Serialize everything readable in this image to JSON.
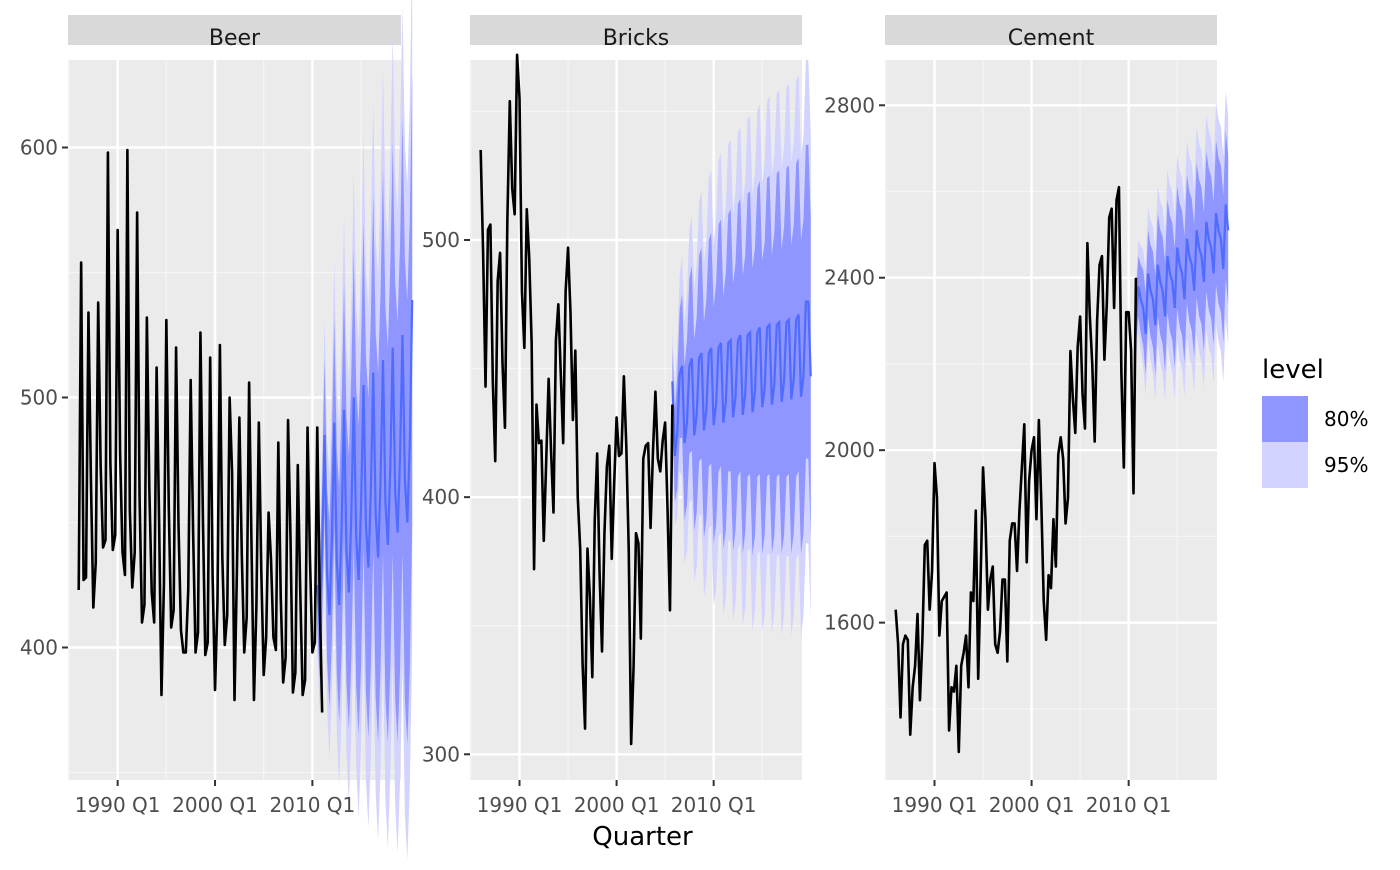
{
  "chart_data": {
    "type": "line",
    "title": "",
    "xlabel": "Quarter",
    "ylabel": "",
    "grid": true,
    "legend": {
      "title": "level",
      "placement": "right",
      "entries": [
        {
          "label": "80%",
          "color": "#8f96ff"
        },
        {
          "label": "95%",
          "color": "#d2d3ff"
        }
      ]
    },
    "colors": {
      "line": "#000000",
      "forecast_mean": "#4f6cff",
      "band80": "#8f96ff",
      "band95": "#d2d3ff",
      "panel_bg": "#ebebeb",
      "strip_bg": "#d9d9d9",
      "grid_major": "#ffffff"
    },
    "x_ticks": [
      {
        "value": 1990,
        "label": "1990 Q1"
      },
      {
        "value": 2000,
        "label": "2000 Q1"
      },
      {
        "value": 2010,
        "label": "2010 Q1"
      }
    ],
    "xlim": [
      1984.9,
      2019.1
    ],
    "panels": [
      {
        "strip": "Beer",
        "ylim": [
          347,
          635
        ],
        "y_ticks": [
          400,
          500,
          600
        ],
        "y_minor": [
          350,
          450,
          550
        ],
        "history": {
          "start": 1986.0,
          "step": 0.25,
          "values": [
            423,
            554,
            427,
            428,
            534,
            468,
            416,
            434,
            538,
            473,
            440,
            443,
            598,
            474,
            439,
            445,
            567,
            478,
            438,
            429,
            599,
            455,
            424,
            438,
            574,
            460,
            410,
            417,
            532,
            464,
            422,
            410,
            512,
            452,
            381,
            425,
            531,
            456,
            408,
            415,
            520,
            449,
            407,
            398,
            398,
            423,
            507,
            446,
            398,
            406,
            526,
            453,
            397,
            402,
            516,
            429,
            383,
            418,
            521,
            436,
            401,
            413,
            500,
            470,
            379,
            431,
            492,
            437,
            398,
            412,
            506,
            440,
            379,
            417,
            490,
            431,
            389,
            404,
            454,
            435,
            404,
            399,
            482,
            420,
            386,
            396,
            491,
            444,
            382,
            390,
            473,
            423,
            381,
            387,
            488,
            436,
            398,
            402,
            488,
            421,
            374
          ]
        },
        "forecast": {
          "start": 2010.5,
          "step": 0.25,
          "mean": [
            425,
            409,
            438,
            485,
            430,
            413,
            443,
            490,
            435,
            417,
            448,
            495,
            439,
            422,
            453,
            500,
            444,
            427,
            457,
            505,
            449,
            432,
            462,
            510,
            453,
            436,
            467,
            515,
            458,
            441,
            472,
            520,
            463,
            446,
            476,
            525,
            467,
            450,
            481,
            539
          ],
          "half80": [
            16,
            22,
            27,
            31,
            34,
            37,
            40,
            42,
            45,
            47,
            49,
            51,
            53,
            55,
            57,
            59,
            60,
            62,
            64,
            65,
            67,
            68,
            70,
            71,
            73,
            74,
            75,
            77,
            78,
            79,
            81,
            82,
            83,
            84,
            85,
            87,
            88,
            89,
            90,
            91
          ],
          "half95": [
            25,
            34,
            41,
            47,
            53,
            57,
            61,
            65,
            69,
            72,
            75,
            78,
            81,
            84,
            87,
            90,
            92,
            95,
            97,
            100,
            102,
            104,
            106,
            108,
            111,
            113,
            115,
            117,
            119,
            121,
            123,
            125,
            126,
            128,
            130,
            132,
            134,
            135,
            137,
            139
          ]
        }
      },
      {
        "strip": "Bricks",
        "ylim": [
          290,
          570
        ],
        "y_ticks": [
          300,
          400,
          500
        ],
        "y_minor": [
          350,
          450,
          550
        ],
        "history": {
          "start": 1986.0,
          "step": 0.25,
          "values": [
            535,
            495,
            443,
            504,
            506,
            445,
            414,
            484,
            495,
            452,
            427,
            508,
            554,
            520,
            510,
            572,
            555,
            480,
            458,
            512,
            493,
            460,
            372,
            436,
            421,
            422,
            383,
            414,
            446,
            418,
            394,
            461,
            475,
            448,
            421,
            480,
            497,
            472,
            430,
            457,
            400,
            380,
            335,
            310,
            380,
            361,
            330,
            391,
            417,
            370,
            340,
            386,
            412,
            420,
            376,
            405,
            431,
            416,
            417,
            447,
            420,
            380,
            304,
            334,
            386,
            382,
            345,
            415,
            420,
            421,
            388,
            418,
            441,
            415,
            410,
            422,
            429,
            395,
            356,
            436
          ]
        },
        "forecast": {
          "start": 2005.75,
          "step": 0.25,
          "mean": [
            445,
            416,
            425,
            448,
            451,
            421,
            429,
            451,
            454,
            424,
            432,
            454,
            456,
            426,
            434,
            456,
            458,
            428,
            436,
            458,
            460,
            429,
            437,
            460,
            461,
            431,
            439,
            461,
            463,
            432,
            440,
            463,
            464,
            433,
            441,
            464,
            466,
            435,
            442,
            466,
            467,
            436,
            444,
            467,
            468,
            437,
            445,
            468,
            469,
            438,
            446,
            469,
            471,
            439,
            447,
            476,
            476,
            447
          ],
          "half80": [
            13,
            18,
            22,
            25,
            28,
            30,
            32,
            34,
            36,
            37,
            38,
            40,
            41,
            42,
            43,
            44,
            45,
            46,
            47,
            48,
            48,
            49,
            50,
            50,
            51,
            52,
            52,
            53,
            53,
            54,
            54,
            55,
            55,
            56,
            56,
            56,
            57,
            57,
            57,
            58,
            58,
            58,
            59,
            59,
            59,
            59,
            60,
            60,
            60,
            60,
            60,
            61,
            61,
            61,
            61,
            61,
            61,
            62
          ],
          "half95": [
            20,
            27,
            33,
            38,
            43,
            47,
            50,
            53,
            55,
            57,
            59,
            61,
            63,
            65,
            66,
            68,
            69,
            70,
            72,
            73,
            74,
            75,
            76,
            77,
            78,
            79,
            80,
            81,
            81,
            82,
            83,
            84,
            84,
            85,
            85,
            86,
            87,
            87,
            88,
            88,
            89,
            89,
            89,
            90,
            90,
            91,
            91,
            91,
            92,
            92,
            92,
            93,
            93,
            93,
            93,
            94,
            94,
            94
          ]
        }
      },
      {
        "strip": "Cement",
        "ylim": [
          1235,
          2905
        ],
        "y_ticks": [
          1600,
          2000,
          2400,
          2800
        ],
        "y_minor": [
          1400,
          1800,
          2200,
          2600
        ],
        "history": {
          "start": 1986.0,
          "step": 0.25,
          "values": [
            1630,
            1550,
            1380,
            1550,
            1570,
            1560,
            1340,
            1450,
            1500,
            1620,
            1420,
            1560,
            1780,
            1790,
            1630,
            1720,
            1970,
            1890,
            1570,
            1650,
            1660,
            1670,
            1350,
            1450,
            1440,
            1500,
            1300,
            1500,
            1530,
            1570,
            1450,
            1670,
            1650,
            1860,
            1470,
            1700,
            1960,
            1840,
            1630,
            1700,
            1730,
            1550,
            1530,
            1580,
            1700,
            1700,
            1510,
            1790,
            1830,
            1830,
            1720,
            1860,
            1960,
            2060,
            1740,
            1930,
            2000,
            2030,
            1840,
            2070,
            1880,
            1650,
            1560,
            1710,
            1680,
            1840,
            1730,
            1990,
            2030,
            1980,
            1830,
            1890,
            2230,
            2120,
            2040,
            2240,
            2310,
            2130,
            2050,
            2480,
            2310,
            2200,
            2020,
            2300,
            2430,
            2450,
            2210,
            2340,
            2540,
            2560,
            2330,
            2580,
            2610,
            2180,
            1960,
            2320,
            2320,
            2230,
            1900,
            2400
          ]
        },
        "forecast": {
          "start": 2010.75,
          "step": 0.25,
          "mean": [
            2300,
            2380,
            2350,
            2330,
            2270,
            2410,
            2370,
            2350,
            2290,
            2430,
            2390,
            2370,
            2310,
            2450,
            2410,
            2390,
            2330,
            2470,
            2430,
            2410,
            2350,
            2490,
            2450,
            2430,
            2370,
            2510,
            2470,
            2450,
            2390,
            2530,
            2490,
            2470,
            2410,
            2550,
            2510,
            2490,
            2420,
            2570,
            2510
          ],
          "half80": [
            55,
            70,
            80,
            88,
            95,
            101,
            106,
            111,
            115,
            119,
            122,
            125,
            128,
            131,
            134,
            136,
            139,
            141,
            143,
            145,
            147,
            149,
            151,
            153,
            154,
            156,
            158,
            159,
            161,
            162,
            164,
            165,
            166,
            168,
            169,
            170,
            171,
            172,
            174
          ],
          "half95": [
            85,
            107,
            122,
            135,
            145,
            154,
            162,
            170,
            176,
            182,
            187,
            192,
            196,
            201,
            205,
            209,
            212,
            216,
            219,
            222,
            225,
            228,
            231,
            234,
            236,
            239,
            241,
            244,
            246,
            248,
            250,
            252,
            254,
            256,
            258,
            260,
            262,
            264,
            266
          ]
        }
      }
    ]
  }
}
